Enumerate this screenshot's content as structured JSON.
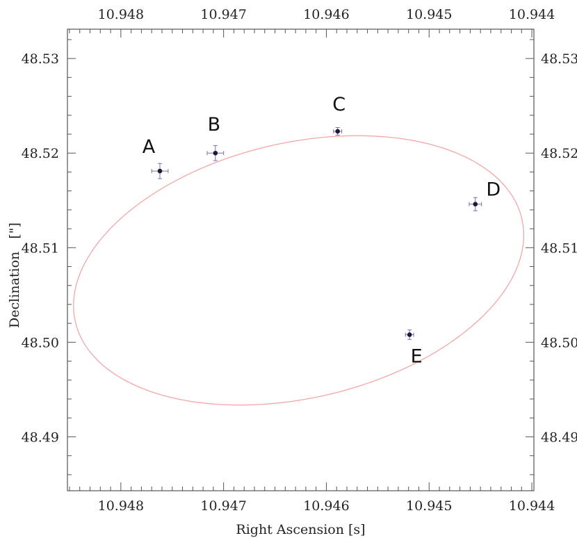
{
  "chart_data": {
    "type": "scatter",
    "title": "",
    "xlabel": "Right Ascension [s]",
    "ylabel": "Declination   [\"]",
    "xlim": [
      10.94852,
      10.94398
    ],
    "ylim": [
      48.4843,
      48.5331
    ],
    "x_ticks": [
      10.948,
      10.947,
      10.946,
      10.945,
      10.944
    ],
    "x_tick_labels": [
      "10.948",
      "10.947",
      "10.946",
      "10.945",
      "10.944"
    ],
    "y_ticks": [
      48.49,
      48.5,
      48.51,
      48.52,
      48.53
    ],
    "y_tick_labels": [
      "48.49",
      "48.50",
      "48.51",
      "48.52",
      "48.53"
    ],
    "grid": false,
    "points": [
      {
        "label": "A",
        "x": 10.94762,
        "y": 48.5181,
        "xerr": 8e-05,
        "yerr": 0.0008
      },
      {
        "label": "B",
        "x": 10.94708,
        "y": 48.52,
        "xerr": 8e-05,
        "yerr": 0.0008
      },
      {
        "label": "C",
        "x": 10.94589,
        "y": 48.5223,
        "xerr": 4e-05,
        "yerr": 0.0004
      },
      {
        "label": "D",
        "x": 10.94455,
        "y": 48.5146,
        "xerr": 6e-05,
        "yerr": 0.0007
      },
      {
        "label": "E",
        "x": 10.94519,
        "y": 48.5008,
        "xerr": 4e-05,
        "yerr": 0.0005
      }
    ],
    "ellipse": {
      "center_x": 10.94627,
      "center_y": 48.5076,
      "semi_axis_x": 0.00223,
      "semi_axis_y": 0.0135,
      "rotation_deg": -13,
      "color": "#f4a6a6"
    },
    "marker_color": "#1a1a3a",
    "errorbar_color": "#7a6fa0"
  }
}
